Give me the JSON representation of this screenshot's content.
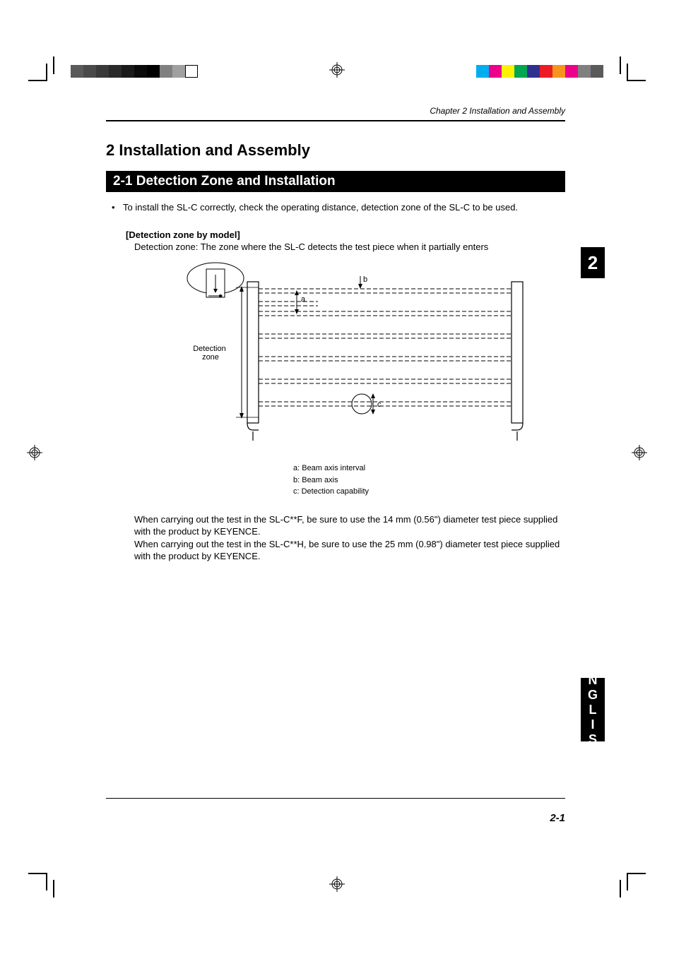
{
  "page": {
    "running_head": "Chapter 2  Installation and Assembly",
    "chapter_title": "2 Installation and Assembly",
    "section_title": "2-1 Detection Zone and Installation",
    "bullet_text": "To install the SL-C correctly, check the operating distance, detection zone of the SL-C to be used.",
    "sub_heading": "[Detection zone by model]",
    "sub_desc_label": "Detection zone:",
    "sub_desc_text": "The zone where the SL-C detects the test piece when it partially enters",
    "diagram": {
      "label_detection_zone": "Detection\nzone",
      "label_a": "a",
      "label_b": "b",
      "label_c": "c",
      "legend_a": "a: Beam axis interval",
      "legend_b": "b: Beam axis",
      "legend_c": "c: Detection capability",
      "colors": {
        "stroke": "#000000",
        "fill_white": "#ffffff",
        "fill_light": "#f0f0f0"
      }
    },
    "para1": "When carrying out the test in the SL-C**F, be sure to use the 14 mm (0.56\") diameter test piece supplied with the product by KEYENCE.",
    "para2": "When carrying out the test in the SL-C**H, be sure to use the 25 mm (0.98\") diameter test piece supplied with the product by KEYENCE.",
    "page_number": "2-1",
    "chapter_tab": "2",
    "lang_tab": "ENGLISH"
  },
  "printmarks": {
    "colorbar_left": [
      "#5a5a5a",
      "#4a4a4a",
      "#3a3a3a",
      "#2a2a2a",
      "#1a1a1a",
      "#0a0a0a",
      "#000000",
      "#808080",
      "#a0a0a0",
      "#ffffff"
    ],
    "colorbar_right": [
      "#00aeef",
      "#ec008c",
      "#fff200",
      "#00a651",
      "#2e3192",
      "#ed1c24",
      "#f7941d",
      "#ec008c",
      "#808080",
      "#5a5a5a"
    ]
  }
}
